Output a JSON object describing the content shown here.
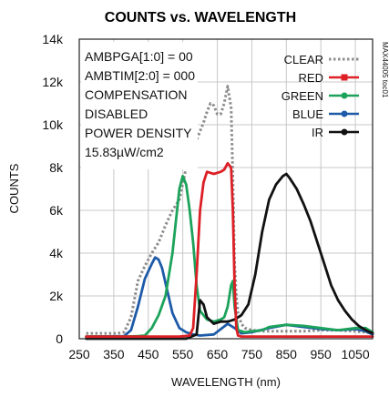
{
  "chart_data": {
    "type": "line",
    "title": "COUNTS vs. WAVELENGTH",
    "xlabel": "WAVELENGTH (nm)",
    "ylabel": "COUNTS",
    "side_label": "MAX44005 toc01",
    "xlim": [
      250,
      1100
    ],
    "ylim": [
      0,
      14000
    ],
    "x_ticks": [
      250,
      350,
      450,
      550,
      650,
      750,
      850,
      950,
      1050
    ],
    "y_ticks": [
      0,
      2000,
      4000,
      6000,
      8000,
      10000,
      12000,
      14000
    ],
    "y_tick_labels": [
      "0",
      "2k",
      "4k",
      "6k",
      "8k",
      "10k",
      "12k",
      "14k"
    ],
    "grid": true,
    "legend_position": "top-right",
    "annotations": [
      "AMBPGA[1:0] = 00",
      "AMBTIM[2:0] = 000",
      "COMPENSATION",
      "DISABLED",
      "POWER DENSITY",
      "15.83µW/cm2"
    ],
    "series": [
      {
        "name": "CLEAR",
        "color": "#8c8c8c",
        "style": "dotted",
        "x": [
          270,
          300,
          330,
          360,
          380,
          400,
          420,
          440,
          460,
          480,
          500,
          520,
          540,
          560,
          570,
          580,
          590,
          600,
          610,
          620,
          630,
          640,
          650,
          660,
          670,
          680,
          690,
          695,
          700,
          705,
          710,
          720,
          730,
          750,
          780,
          800,
          850,
          900,
          950,
          1000,
          1050,
          1080,
          1100
        ],
        "y": [
          250,
          250,
          250,
          250,
          300,
          1000,
          2700,
          3400,
          4000,
          4500,
          5300,
          6000,
          6500,
          8000,
          8500,
          8900,
          9300,
          9700,
          10100,
          10600,
          11000,
          10900,
          10500,
          10500,
          11000,
          11800,
          10800,
          7500,
          3500,
          2000,
          1200,
          700,
          500,
          400,
          350,
          350,
          350,
          350,
          400,
          400,
          350,
          300,
          250
        ]
      },
      {
        "name": "RED",
        "color": "#dc2026",
        "style": "solid",
        "x": [
          270,
          400,
          500,
          540,
          570,
          580,
          590,
          600,
          610,
          620,
          640,
          660,
          670,
          680,
          690,
          695,
          700,
          705,
          710,
          720,
          750,
          800,
          850,
          900,
          950,
          1000,
          1050,
          1080,
          1100
        ],
        "y": [
          100,
          100,
          100,
          100,
          150,
          500,
          3000,
          6000,
          7300,
          7800,
          7700,
          7800,
          7900,
          8200,
          8000,
          6000,
          2500,
          500,
          150,
          100,
          100,
          100,
          100,
          100,
          100,
          100,
          100,
          100,
          100
        ]
      },
      {
        "name": "GREEN",
        "color": "#1ca35b",
        "style": "solid",
        "x": [
          270,
          380,
          420,
          440,
          460,
          480,
          500,
          520,
          540,
          550,
          560,
          570,
          580,
          590,
          600,
          620,
          640,
          660,
          670,
          680,
          690,
          695,
          700,
          710,
          730,
          750,
          780,
          800,
          850,
          900,
          950,
          1000,
          1050,
          1080,
          1100
        ],
        "y": [
          100,
          100,
          120,
          150,
          500,
          1100,
          2000,
          4000,
          7000,
          7600,
          7200,
          6000,
          4500,
          2500,
          1300,
          900,
          800,
          900,
          1000,
          1500,
          2500,
          2700,
          1500,
          400,
          300,
          350,
          400,
          550,
          650,
          600,
          500,
          400,
          500,
          500,
          300
        ]
      },
      {
        "name": "BLUE",
        "color": "#1d5aa8",
        "style": "solid",
        "x": [
          270,
          380,
          400,
          420,
          440,
          460,
          470,
          480,
          490,
          500,
          520,
          540,
          560,
          580,
          600,
          640,
          680,
          700,
          720,
          750,
          800,
          850,
          900,
          950,
          1000,
          1050,
          1080,
          1100
        ],
        "y": [
          100,
          120,
          400,
          1500,
          2800,
          3500,
          3800,
          3700,
          3300,
          2600,
          1200,
          500,
          300,
          200,
          150,
          200,
          700,
          500,
          250,
          300,
          500,
          650,
          550,
          450,
          400,
          450,
          350,
          200
        ]
      },
      {
        "name": "IR",
        "color": "#111111",
        "style": "solid",
        "x": [
          270,
          400,
          500,
          560,
          590,
          600,
          610,
          620,
          640,
          660,
          680,
          700,
          720,
          740,
          760,
          780,
          800,
          820,
          840,
          850,
          860,
          880,
          900,
          920,
          940,
          960,
          980,
          1000,
          1020,
          1040,
          1060,
          1080,
          1100
        ],
        "y": [
          0,
          0,
          0,
          0,
          200,
          1800,
          1600,
          1000,
          700,
          800,
          800,
          900,
          1100,
          1600,
          3000,
          5000,
          6500,
          7200,
          7600,
          7700,
          7500,
          7000,
          6300,
          5500,
          4500,
          3500,
          2500,
          1800,
          1300,
          900,
          600,
          400,
          250
        ]
      }
    ]
  }
}
